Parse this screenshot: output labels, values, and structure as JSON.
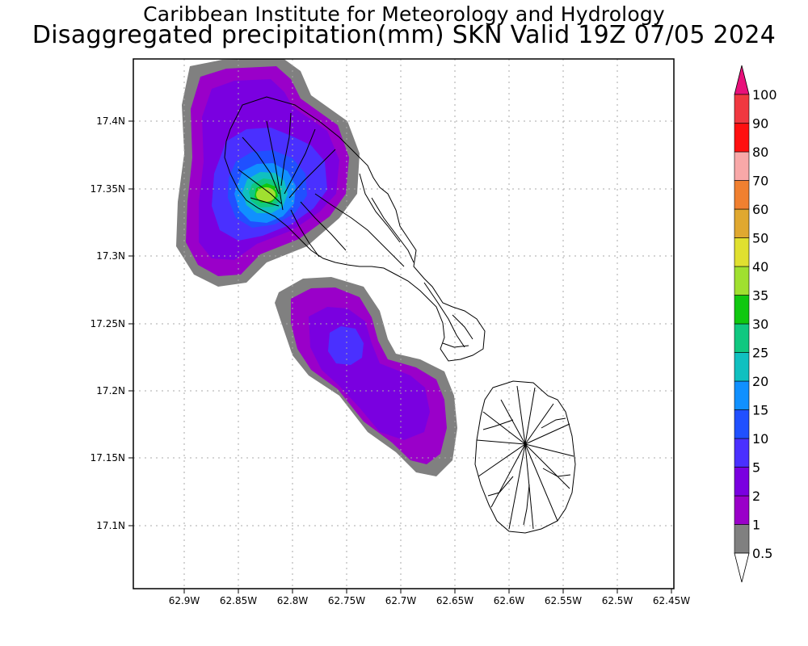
{
  "header": {
    "line1": "Caribbean Institute for Meteorology and Hydrology",
    "line2": "Disaggregated precipitation(mm) SKN Valid 19Z 07/05 2024"
  },
  "axes": {
    "x_ticks": [
      "62.9W",
      "62.85W",
      "62.8W",
      "62.75W",
      "62.7W",
      "62.65W",
      "62.6W",
      "62.55W",
      "62.5W",
      "62.45W"
    ],
    "y_ticks": [
      "17.4N",
      "17.35N",
      "17.3N",
      "17.25N",
      "17.2N",
      "17.15N",
      "17.1N"
    ]
  },
  "colorbar": {
    "levels": [
      "0.5",
      "1",
      "2",
      "5",
      "10",
      "15",
      "20",
      "25",
      "30",
      "35",
      "40",
      "50",
      "60",
      "70",
      "80",
      "90",
      "100"
    ],
    "colors": [
      "#808080",
      "#9a00c9",
      "#7a00e0",
      "#4a30ff",
      "#2050ff",
      "#1090ff",
      "#10c0c0",
      "#10c880",
      "#10c810",
      "#a0e030",
      "#e0e030",
      "#e0a830",
      "#f08030",
      "#f8a8a8",
      "#ff1010",
      "#f03840"
    ],
    "top_color": "#e8107a"
  },
  "chart_data": {
    "type": "heatmap",
    "title": "Disaggregated precipitation(mm) SKN Valid 19Z 07/05 2024",
    "units": "mm",
    "xlim": [
      62.945,
      62.445
    ],
    "ylim": [
      17.05,
      17.445
    ],
    "grid": true,
    "legend": "right colorbar",
    "max_region": {
      "label": "35-40",
      "lon": 62.82,
      "lat": 17.345
    }
  }
}
